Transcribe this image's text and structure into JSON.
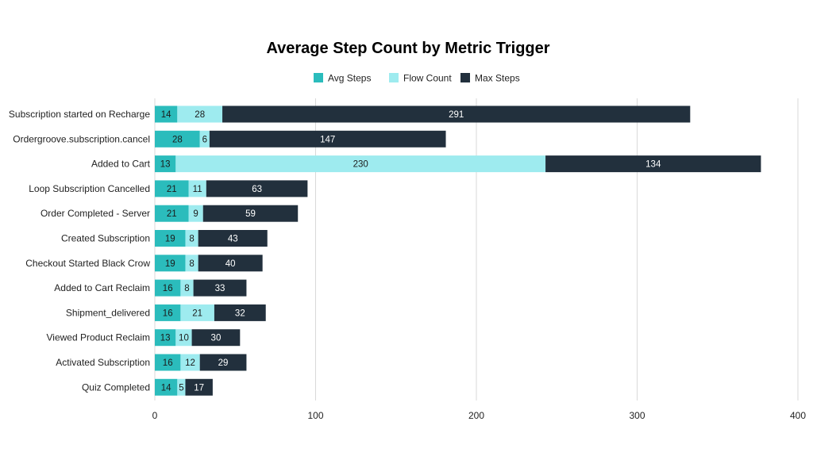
{
  "chart_data": {
    "type": "bar",
    "orientation": "horizontal",
    "stacked": true,
    "title": "Average Step Count by Metric Trigger",
    "xlabel": "",
    "ylabel": "",
    "xlim": [
      0,
      400
    ],
    "x_ticks": [
      0,
      100,
      200,
      300,
      400
    ],
    "grid": true,
    "legend_position": "top",
    "categories": [
      "Subscription started on Recharge",
      "Ordergroove.subscription.cancel",
      "Added to Cart",
      "Loop Subscription Cancelled",
      "Order Completed - Server",
      "Created Subscription",
      "Checkout Started Black Crow",
      "Added to Cart Reclaim",
      "Shipment_delivered",
      "Viewed Product Reclaim",
      "Activated Subscription",
      "Quiz Completed"
    ],
    "series": [
      {
        "name": "Avg Steps",
        "color": "#2bbcbc",
        "label_color": "#1b1b1b",
        "values": [
          14,
          28,
          13,
          21,
          21,
          19,
          19,
          16,
          16,
          13,
          16,
          14
        ]
      },
      {
        "name": "Flow Count",
        "color": "#9eebef",
        "label_color": "#1b1b1b",
        "values": [
          28,
          6,
          230,
          11,
          9,
          8,
          8,
          8,
          21,
          10,
          12,
          5
        ]
      },
      {
        "name": "Max Steps",
        "color": "#22303d",
        "label_color": "#ffffff",
        "values": [
          291,
          147,
          134,
          63,
          59,
          43,
          40,
          33,
          32,
          30,
          29,
          17
        ]
      }
    ]
  }
}
